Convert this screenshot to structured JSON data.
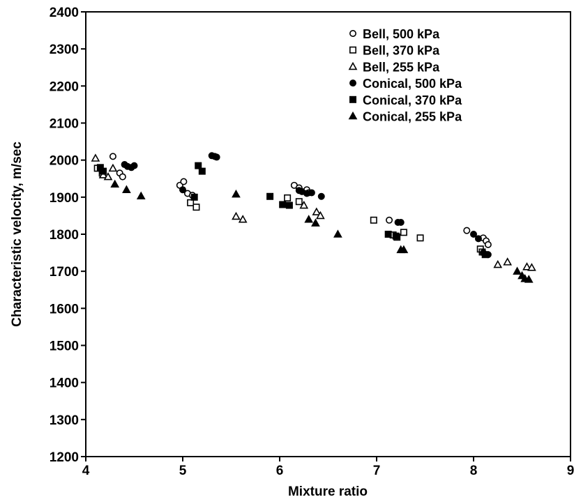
{
  "chart_data": {
    "type": "scatter",
    "xlabel": "Mixture ratio",
    "ylabel": "Characteristic velocity, m/sec",
    "xlim": [
      4,
      9
    ],
    "ylim": [
      1200,
      2400
    ],
    "x_ticks": [
      4,
      5,
      6,
      7,
      8,
      9
    ],
    "y_ticks": [
      1200,
      1300,
      1400,
      1500,
      1600,
      1700,
      1800,
      1900,
      2000,
      2100,
      2200,
      2300,
      2400
    ],
    "grid": false,
    "legend_position": "top-right",
    "series": [
      {
        "name": "Bell, 500 kPa",
        "marker": "circle",
        "filled": false,
        "points": [
          {
            "x": 4.28,
            "y": 2010
          },
          {
            "x": 4.35,
            "y": 1965
          },
          {
            "x": 4.38,
            "y": 1955
          },
          {
            "x": 4.97,
            "y": 1932
          },
          {
            "x": 5.01,
            "y": 1942
          },
          {
            "x": 5.05,
            "y": 1910
          },
          {
            "x": 5.1,
            "y": 1905
          },
          {
            "x": 6.15,
            "y": 1932
          },
          {
            "x": 6.2,
            "y": 1925
          },
          {
            "x": 6.28,
            "y": 1920
          },
          {
            "x": 6.3,
            "y": 1912
          },
          {
            "x": 7.13,
            "y": 1838
          },
          {
            "x": 7.93,
            "y": 1810
          },
          {
            "x": 8.1,
            "y": 1790
          },
          {
            "x": 8.13,
            "y": 1782
          },
          {
            "x": 8.15,
            "y": 1772
          }
        ]
      },
      {
        "name": "Bell, 370 kPa",
        "marker": "square",
        "filled": false,
        "points": [
          {
            "x": 4.12,
            "y": 1978
          },
          {
            "x": 4.17,
            "y": 1965
          },
          {
            "x": 5.08,
            "y": 1885
          },
          {
            "x": 5.14,
            "y": 1873
          },
          {
            "x": 6.08,
            "y": 1898
          },
          {
            "x": 6.2,
            "y": 1888
          },
          {
            "x": 6.97,
            "y": 1838
          },
          {
            "x": 7.17,
            "y": 1798
          },
          {
            "x": 7.21,
            "y": 1792
          },
          {
            "x": 7.28,
            "y": 1805
          },
          {
            "x": 7.45,
            "y": 1790
          },
          {
            "x": 8.07,
            "y": 1760
          },
          {
            "x": 8.09,
            "y": 1752
          }
        ]
      },
      {
        "name": "Bell, 255 kPa",
        "marker": "triangle",
        "filled": false,
        "points": [
          {
            "x": 4.1,
            "y": 2005
          },
          {
            "x": 4.18,
            "y": 1960
          },
          {
            "x": 4.23,
            "y": 1955
          },
          {
            "x": 4.28,
            "y": 1978
          },
          {
            "x": 5.55,
            "y": 1848
          },
          {
            "x": 5.62,
            "y": 1840
          },
          {
            "x": 6.25,
            "y": 1878
          },
          {
            "x": 6.38,
            "y": 1860
          },
          {
            "x": 6.42,
            "y": 1850
          },
          {
            "x": 8.25,
            "y": 1718
          },
          {
            "x": 8.35,
            "y": 1725
          },
          {
            "x": 8.55,
            "y": 1712
          },
          {
            "x": 8.6,
            "y": 1710
          }
        ]
      },
      {
        "name": "Conical, 500 kPa",
        "marker": "circle",
        "filled": true,
        "points": [
          {
            "x": 4.4,
            "y": 1988
          },
          {
            "x": 4.43,
            "y": 1983
          },
          {
            "x": 4.47,
            "y": 1980
          },
          {
            "x": 4.5,
            "y": 1985
          },
          {
            "x": 5.0,
            "y": 1920
          },
          {
            "x": 5.3,
            "y": 2012
          },
          {
            "x": 5.33,
            "y": 2010
          },
          {
            "x": 5.35,
            "y": 2008
          },
          {
            "x": 6.2,
            "y": 1918
          },
          {
            "x": 6.23,
            "y": 1915
          },
          {
            "x": 6.28,
            "y": 1910
          },
          {
            "x": 6.33,
            "y": 1912
          },
          {
            "x": 6.43,
            "y": 1902
          },
          {
            "x": 7.22,
            "y": 1832
          },
          {
            "x": 7.25,
            "y": 1832
          },
          {
            "x": 8.0,
            "y": 1800
          },
          {
            "x": 8.05,
            "y": 1788
          },
          {
            "x": 8.1,
            "y": 1750
          },
          {
            "x": 8.15,
            "y": 1745
          }
        ]
      },
      {
        "name": "Conical, 370 kPa",
        "marker": "square",
        "filled": true,
        "points": [
          {
            "x": 4.15,
            "y": 1980
          },
          {
            "x": 4.18,
            "y": 1970
          },
          {
            "x": 5.12,
            "y": 1900
          },
          {
            "x": 5.16,
            "y": 1985
          },
          {
            "x": 5.2,
            "y": 1970
          },
          {
            "x": 5.9,
            "y": 1902
          },
          {
            "x": 6.03,
            "y": 1880
          },
          {
            "x": 6.1,
            "y": 1878
          },
          {
            "x": 7.12,
            "y": 1800
          },
          {
            "x": 7.2,
            "y": 1795
          },
          {
            "x": 8.12,
            "y": 1745
          }
        ]
      },
      {
        "name": "Conical, 255 kPa",
        "marker": "triangle",
        "filled": true,
        "points": [
          {
            "x": 4.3,
            "y": 1935
          },
          {
            "x": 4.42,
            "y": 1920
          },
          {
            "x": 4.57,
            "y": 1903
          },
          {
            "x": 5.55,
            "y": 1908
          },
          {
            "x": 6.3,
            "y": 1840
          },
          {
            "x": 6.37,
            "y": 1830
          },
          {
            "x": 6.6,
            "y": 1800
          },
          {
            "x": 7.25,
            "y": 1758
          },
          {
            "x": 7.28,
            "y": 1758
          },
          {
            "x": 8.45,
            "y": 1700
          },
          {
            "x": 8.5,
            "y": 1688
          },
          {
            "x": 8.53,
            "y": 1680
          },
          {
            "x": 8.57,
            "y": 1678
          }
        ]
      }
    ]
  }
}
